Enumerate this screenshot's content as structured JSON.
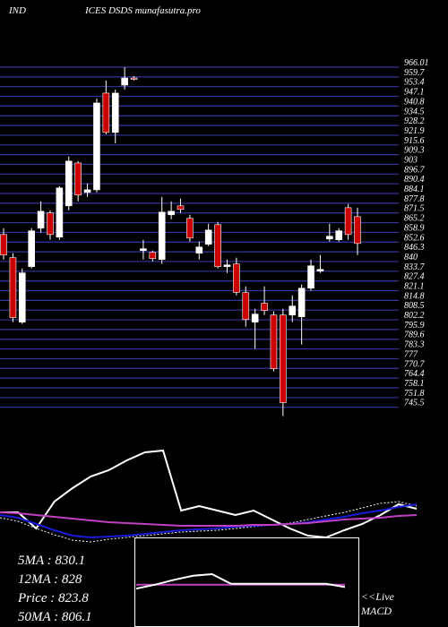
{
  "header": {
    "left": "IND",
    "title": "ICES DSDS munafasutra.pro"
  },
  "chart_data": [
    {
      "type": "candlestick",
      "ylim": [
        739.5,
        966.01
      ],
      "grid": true,
      "grid_color": "#3535a0",
      "up_color": "#ffffff",
      "down_color": "#cc0000",
      "yticks": [
        966.01,
        959.7,
        953.4,
        947.1,
        940.8,
        934.5,
        928.2,
        921.9,
        915.6,
        909.3,
        903.0,
        896.7,
        890.4,
        884.1,
        877.8,
        871.5,
        865.2,
        858.9,
        852.6,
        846.3,
        840.0,
        833.7,
        827.4,
        821.1,
        814.8,
        808.5,
        802.2,
        795.9,
        789.6,
        783.3,
        777.0,
        770.7,
        764.4,
        758.1,
        751.8,
        745.5
      ],
      "open": [
        857.5,
        842.5,
        800.7,
        836.7,
        861.6,
        871.5,
        855.8,
        876.1,
        903.9,
        884.8,
        886.5,
        949.2,
        923.7,
        954.4,
        959.0,
        847.1,
        845.9,
        841.3,
        870.3,
        876.1,
        868.0,
        845.4,
        851.2,
        863.9,
        836.7,
        838.4,
        819.8,
        800.7,
        812.9,
        805.3,
        805.3,
        805.3,
        804.2,
        822.7,
        833.8,
        854.6,
        854.1,
        874.9,
        869.1
      ],
      "high": [
        861.6,
        845.4,
        835.5,
        861.6,
        879.0,
        873.2,
        888.9,
        908.0,
        905.1,
        890.6,
        945.7,
        957.3,
        951.5,
        966.0,
        960.2,
        854.1,
        847.1,
        881.9,
        879.0,
        880.7,
        870.3,
        852.9,
        864.5,
        865.7,
        841.3,
        842.5,
        823.9,
        809.4,
        823.9,
        807.7,
        809.4,
        818.1,
        825.1,
        841.3,
        844.2,
        864.5,
        861.6,
        877.3,
        874.9
      ],
      "low": [
        841.3,
        800.7,
        799.5,
        835.5,
        858.7,
        854.1,
        854.1,
        873.2,
        879.0,
        881.9,
        884.8,
        922.5,
        916.7,
        951.5,
        957.3,
        841.3,
        840.1,
        838.4,
        867.4,
        871.5,
        852.9,
        841.3,
        850.0,
        835.5,
        832.6,
        818.1,
        797.8,
        783.3,
        805.3,
        768.8,
        739.8,
        800.7,
        786.2,
        821.0,
        832.6,
        852.9,
        852.9,
        854.1,
        844.2
      ],
      "close": [
        844.2,
        803.6,
        832.6,
        859.9,
        872.6,
        857.5,
        887.7,
        905.1,
        883.1,
        886.5,
        942.8,
        923.7,
        949.2,
        959.0,
        958.5,
        848.3,
        841.9,
        872.0,
        872.6,
        873.8,
        855.2,
        849.4,
        860.4,
        836.7,
        837.8,
        820.0,
        802.4,
        805.9,
        808.2,
        770.5,
        748.5,
        811.1,
        822.7,
        837.2,
        834.9,
        856.4,
        859.9,
        857.5,
        851.7
      ]
    },
    {
      "type": "line",
      "ylim": [
        -10,
        120
      ],
      "series": [
        {
          "color": "#ffffff",
          "values": [
            28,
            28,
            10,
            40,
            55,
            68,
            75,
            86,
            95,
            97,
            30,
            35,
            30,
            25,
            30,
            20,
            10,
            2,
            0,
            8,
            15,
            25,
            37,
            32
          ]
        },
        {
          "color": "#ffffff",
          "dash": true,
          "values": [
            22,
            18,
            10,
            3,
            -3,
            -5,
            -2,
            0,
            2,
            4,
            6,
            7,
            8,
            10,
            12,
            14,
            16,
            20,
            24,
            28,
            33,
            38,
            40,
            35
          ]
        },
        {
          "color": "#1a1ad8",
          "values": [
            25,
            22,
            15,
            8,
            2,
            0,
            1,
            2,
            4,
            6,
            8,
            9,
            10,
            12,
            13,
            14,
            15,
            17,
            20,
            23,
            27,
            30,
            34,
            37
          ]
        },
        {
          "color": "#c040c0",
          "values": [
            28,
            27,
            25,
            23,
            21,
            19,
            17,
            16,
            15,
            14,
            13,
            13,
            13,
            13,
            14,
            14,
            15,
            16,
            18,
            20,
            21,
            22,
            24,
            25
          ]
        }
      ]
    },
    {
      "type": "line",
      "ylim": [
        -50,
        50
      ],
      "label_lines": [
        "<<Live",
        "MACD"
      ],
      "series": [
        {
          "color": "#c040c0",
          "values": [
            -3,
            -3,
            -3,
            -3,
            -3,
            -3,
            -3,
            -3,
            -3,
            -3,
            -3,
            -3
          ]
        },
        {
          "color": "#ffffff",
          "values": [
            -8,
            -3,
            3,
            8,
            10,
            -2,
            -2,
            -2,
            -2,
            -2,
            -2,
            -6
          ]
        }
      ]
    }
  ],
  "ma_labels": [
    "5MA : 830.1",
    "12MA : 828",
    "Price  : 823.8",
    "50MA : 806.1"
  ]
}
